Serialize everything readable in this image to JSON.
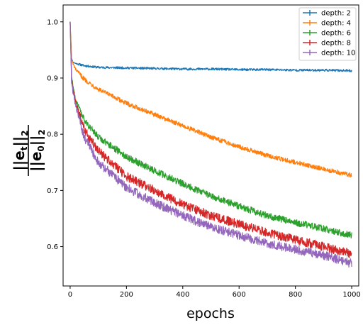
{
  "chart_data": {
    "type": "line",
    "title": "",
    "xlabel": "epochs",
    "ylabel_fraction": {
      "numerator": "||e_t||_2",
      "denominator": "||e_0||_2",
      "num_base": "||e",
      "num_sub": "t",
      "num_close": "||",
      "num_exp": "2",
      "den_base": "||e",
      "den_sub": "0",
      "den_close": "||",
      "den_exp": "2"
    },
    "xlim": [
      -25,
      1025
    ],
    "ylim": [
      0.53,
      1.03
    ],
    "xticks": [
      0,
      200,
      400,
      600,
      800,
      1000
    ],
    "xtick_labels": [
      "0",
      "200",
      "400",
      "600",
      "800",
      "1000"
    ],
    "yticks": [
      0.6,
      0.7,
      0.8,
      0.9,
      1.0
    ],
    "ytick_labels": [
      "0.6",
      "0.7",
      "0.8",
      "0.9",
      "1.0"
    ],
    "grid": false,
    "legend_position": "top-right",
    "series": [
      {
        "name": "depth: 2",
        "color": "#1f77b4",
        "noise": 0.002,
        "x": [
          0,
          5,
          10,
          20,
          50,
          100,
          200,
          300,
          400,
          500,
          600,
          700,
          800,
          900,
          1000
        ],
        "y": [
          1.0,
          0.935,
          0.928,
          0.926,
          0.922,
          0.919,
          0.918,
          0.917,
          0.916,
          0.916,
          0.915,
          0.915,
          0.914,
          0.914,
          0.913
        ]
      },
      {
        "name": "depth: 4",
        "color": "#ff7f0e",
        "noise": 0.004,
        "x": [
          0,
          5,
          10,
          20,
          50,
          100,
          200,
          300,
          400,
          500,
          600,
          700,
          800,
          900,
          1000
        ],
        "y": [
          1.0,
          0.935,
          0.925,
          0.915,
          0.898,
          0.88,
          0.855,
          0.835,
          0.815,
          0.795,
          0.778,
          0.762,
          0.75,
          0.738,
          0.727
        ]
      },
      {
        "name": "depth: 6",
        "color": "#2ca02c",
        "noise": 0.006,
        "x": [
          0,
          5,
          10,
          20,
          50,
          100,
          200,
          300,
          400,
          500,
          600,
          700,
          800,
          900,
          1000
        ],
        "y": [
          1.0,
          0.905,
          0.885,
          0.86,
          0.825,
          0.795,
          0.76,
          0.735,
          0.712,
          0.69,
          0.672,
          0.655,
          0.643,
          0.632,
          0.62
        ]
      },
      {
        "name": "depth: 8",
        "color": "#d62728",
        "noise": 0.008,
        "x": [
          0,
          5,
          10,
          20,
          50,
          100,
          200,
          300,
          400,
          500,
          600,
          700,
          800,
          900,
          1000
        ],
        "y": [
          1.0,
          0.9,
          0.878,
          0.855,
          0.808,
          0.77,
          0.725,
          0.7,
          0.675,
          0.655,
          0.64,
          0.625,
          0.612,
          0.6,
          0.587
        ]
      },
      {
        "name": "depth: 10",
        "color": "#9467bd",
        "noise": 0.008,
        "x": [
          0,
          5,
          10,
          20,
          50,
          100,
          200,
          300,
          400,
          500,
          600,
          700,
          800,
          900,
          1000
        ],
        "y": [
          1.0,
          0.895,
          0.875,
          0.85,
          0.795,
          0.75,
          0.705,
          0.678,
          0.655,
          0.635,
          0.62,
          0.606,
          0.595,
          0.585,
          0.57
        ]
      }
    ]
  }
}
